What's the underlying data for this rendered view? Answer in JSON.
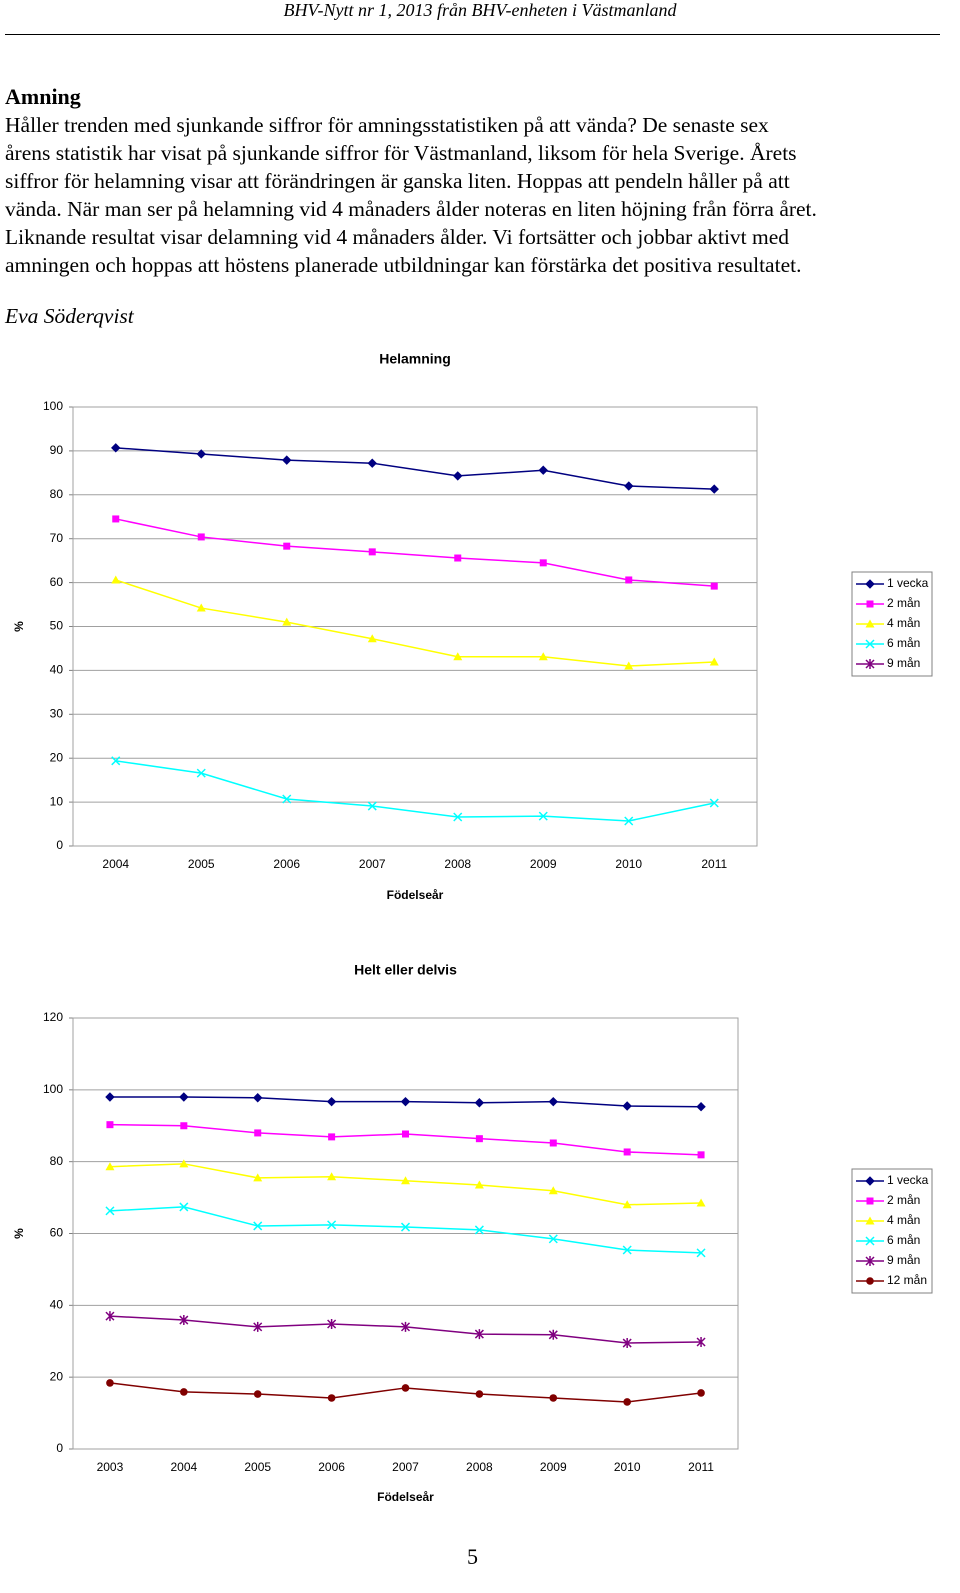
{
  "header": {
    "title": "BHV-Nytt nr 1, 2013 från BHV-enheten i Västmanland"
  },
  "article": {
    "heading": "Amning",
    "lines": [
      "Håller trenden med sjunkande siffror för amningsstatistiken på att vända? De senaste sex",
      "årens statistik har visat på sjunkande siffror för Västmanland, liksom för hela Sverige. Årets",
      "siffror för helamning visar att förändringen är ganska liten. Hoppas att pendeln håller på att",
      "vända. När man ser på helamning vid 4 månaders ålder noteras en liten höjning från förra året.",
      "Liknande resultat visar delamning vid 4 månaders ålder. Vi fortsätter och jobbar aktivt med",
      "amningen och hoppas att höstens planerade utbildningar kan förstärka det positiva resultatet."
    ],
    "author": "Eva Söderqvist"
  },
  "chart_data": [
    {
      "type": "line",
      "title": "Helamning",
      "x_label": "Födelseår",
      "y_label": "%",
      "categories": [
        "2004",
        "2005",
        "2006",
        "2007",
        "2008",
        "2009",
        "2010",
        "2011"
      ],
      "ylim": [
        0,
        100
      ],
      "yticks": [
        0,
        10,
        20,
        30,
        40,
        50,
        60,
        70,
        80,
        90,
        100
      ],
      "grid": true,
      "legend": "right",
      "series": [
        {
          "name": "1 vecka",
          "color": "#000080",
          "marker": "diamond",
          "values": [
            90.7,
            89.3,
            87.9,
            87.2,
            84.3,
            85.6,
            82.0,
            81.3
          ]
        },
        {
          "name": "2 mån",
          "color": "#ff00ff",
          "marker": "square",
          "values": [
            74.5,
            70.4,
            68.3,
            67.0,
            65.6,
            64.5,
            60.6,
            59.2
          ]
        },
        {
          "name": "4 mån",
          "color": "#ffff00",
          "marker": "triangle",
          "values": [
            60.6,
            54.2,
            51.0,
            47.2,
            43.1,
            43.1,
            41.0,
            41.9
          ]
        },
        {
          "name": "6 mån",
          "color": "#00ffff",
          "marker": "x",
          "values": [
            19.4,
            16.6,
            10.7,
            9.1,
            6.6,
            6.8,
            5.7,
            9.8
          ]
        },
        {
          "name": "9 mån",
          "color": "#800080",
          "marker": "star",
          "values": [
            null,
            null,
            null,
            null,
            null,
            null,
            null,
            null
          ]
        }
      ]
    },
    {
      "type": "line",
      "title": "Helt eller delvis",
      "x_label": "Födelseår",
      "y_label": "%",
      "categories": [
        "2003",
        "2004",
        "2005",
        "2006",
        "2007",
        "2008",
        "2009",
        "2010",
        "2011"
      ],
      "ylim": [
        0,
        120
      ],
      "yticks": [
        0,
        20,
        40,
        60,
        80,
        100,
        120
      ],
      "grid": true,
      "legend": "right",
      "series": [
        {
          "name": "1 vecka",
          "color": "#000080",
          "marker": "diamond",
          "values": [
            98.0,
            98.0,
            97.8,
            96.7,
            96.7,
            96.4,
            96.7,
            95.5,
            95.3
          ]
        },
        {
          "name": "2 mån",
          "color": "#ff00ff",
          "marker": "square",
          "values": [
            90.3,
            90.0,
            88.0,
            86.9,
            87.7,
            86.4,
            85.2,
            82.7,
            81.9
          ]
        },
        {
          "name": "4 mån",
          "color": "#ffff00",
          "marker": "triangle",
          "values": [
            78.6,
            79.4,
            75.5,
            75.8,
            74.7,
            73.5,
            71.9,
            68.0,
            68.5
          ]
        },
        {
          "name": "6 mån",
          "color": "#00ffff",
          "marker": "x",
          "values": [
            66.3,
            67.4,
            62.1,
            62.4,
            61.8,
            61.0,
            58.5,
            55.4,
            54.6
          ]
        },
        {
          "name": "9 mån",
          "color": "#800080",
          "marker": "star",
          "values": [
            37.0,
            35.9,
            34.0,
            34.8,
            34.0,
            32.0,
            31.8,
            29.5,
            29.8
          ]
        },
        {
          "name": "12 mån",
          "color": "#800000",
          "marker": "circle",
          "values": [
            18.4,
            15.9,
            15.3,
            14.2,
            17.0,
            15.3,
            14.2,
            13.1,
            15.6
          ]
        }
      ]
    }
  ],
  "footer": {
    "page_number": "5"
  }
}
